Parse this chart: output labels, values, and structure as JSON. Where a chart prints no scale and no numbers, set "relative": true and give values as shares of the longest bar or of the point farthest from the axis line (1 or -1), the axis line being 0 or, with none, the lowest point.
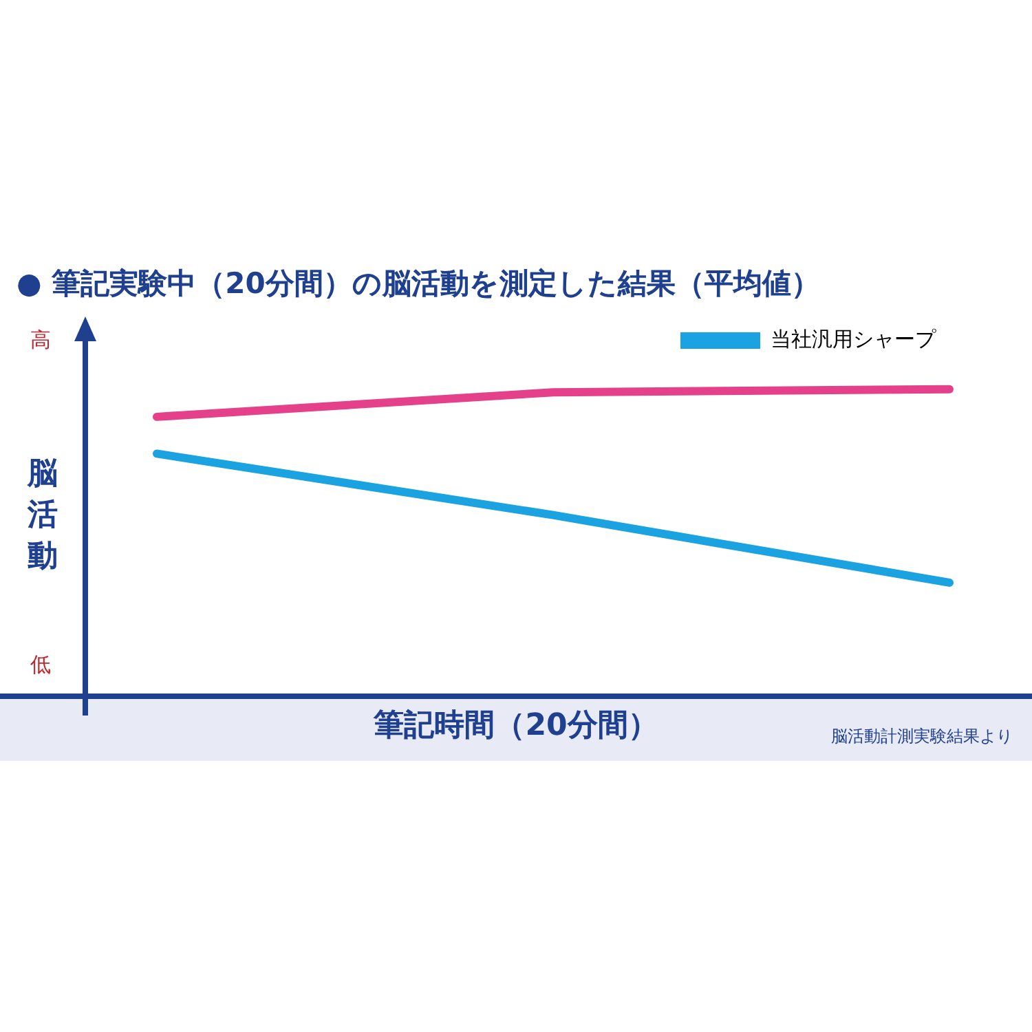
{
  "chart_data": {
    "type": "line",
    "relative": true,
    "title": "● 筆記実験中（20分間）の脳活動を測定した結果（平均値）",
    "xlabel": "筆記時間（20分間）",
    "ylabel": "脳活動",
    "annotations": [
      "高",
      "低",
      "脳活動計測実験結果より"
    ],
    "categories": [
      null,
      null,
      null
    ],
    "series": [
      {
        "color": "#e4418a",
        "values": [
          0.91,
          0.99,
          1
        ]
      },
      {
        "name": "当社汎用シャープ",
        "color": "#1aa3e0",
        "values": [
          0.79,
          0.59,
          0.37
        ]
      }
    ],
    "legend": "top right",
    "marker": "none",
    "line_style": "solid"
  }
}
